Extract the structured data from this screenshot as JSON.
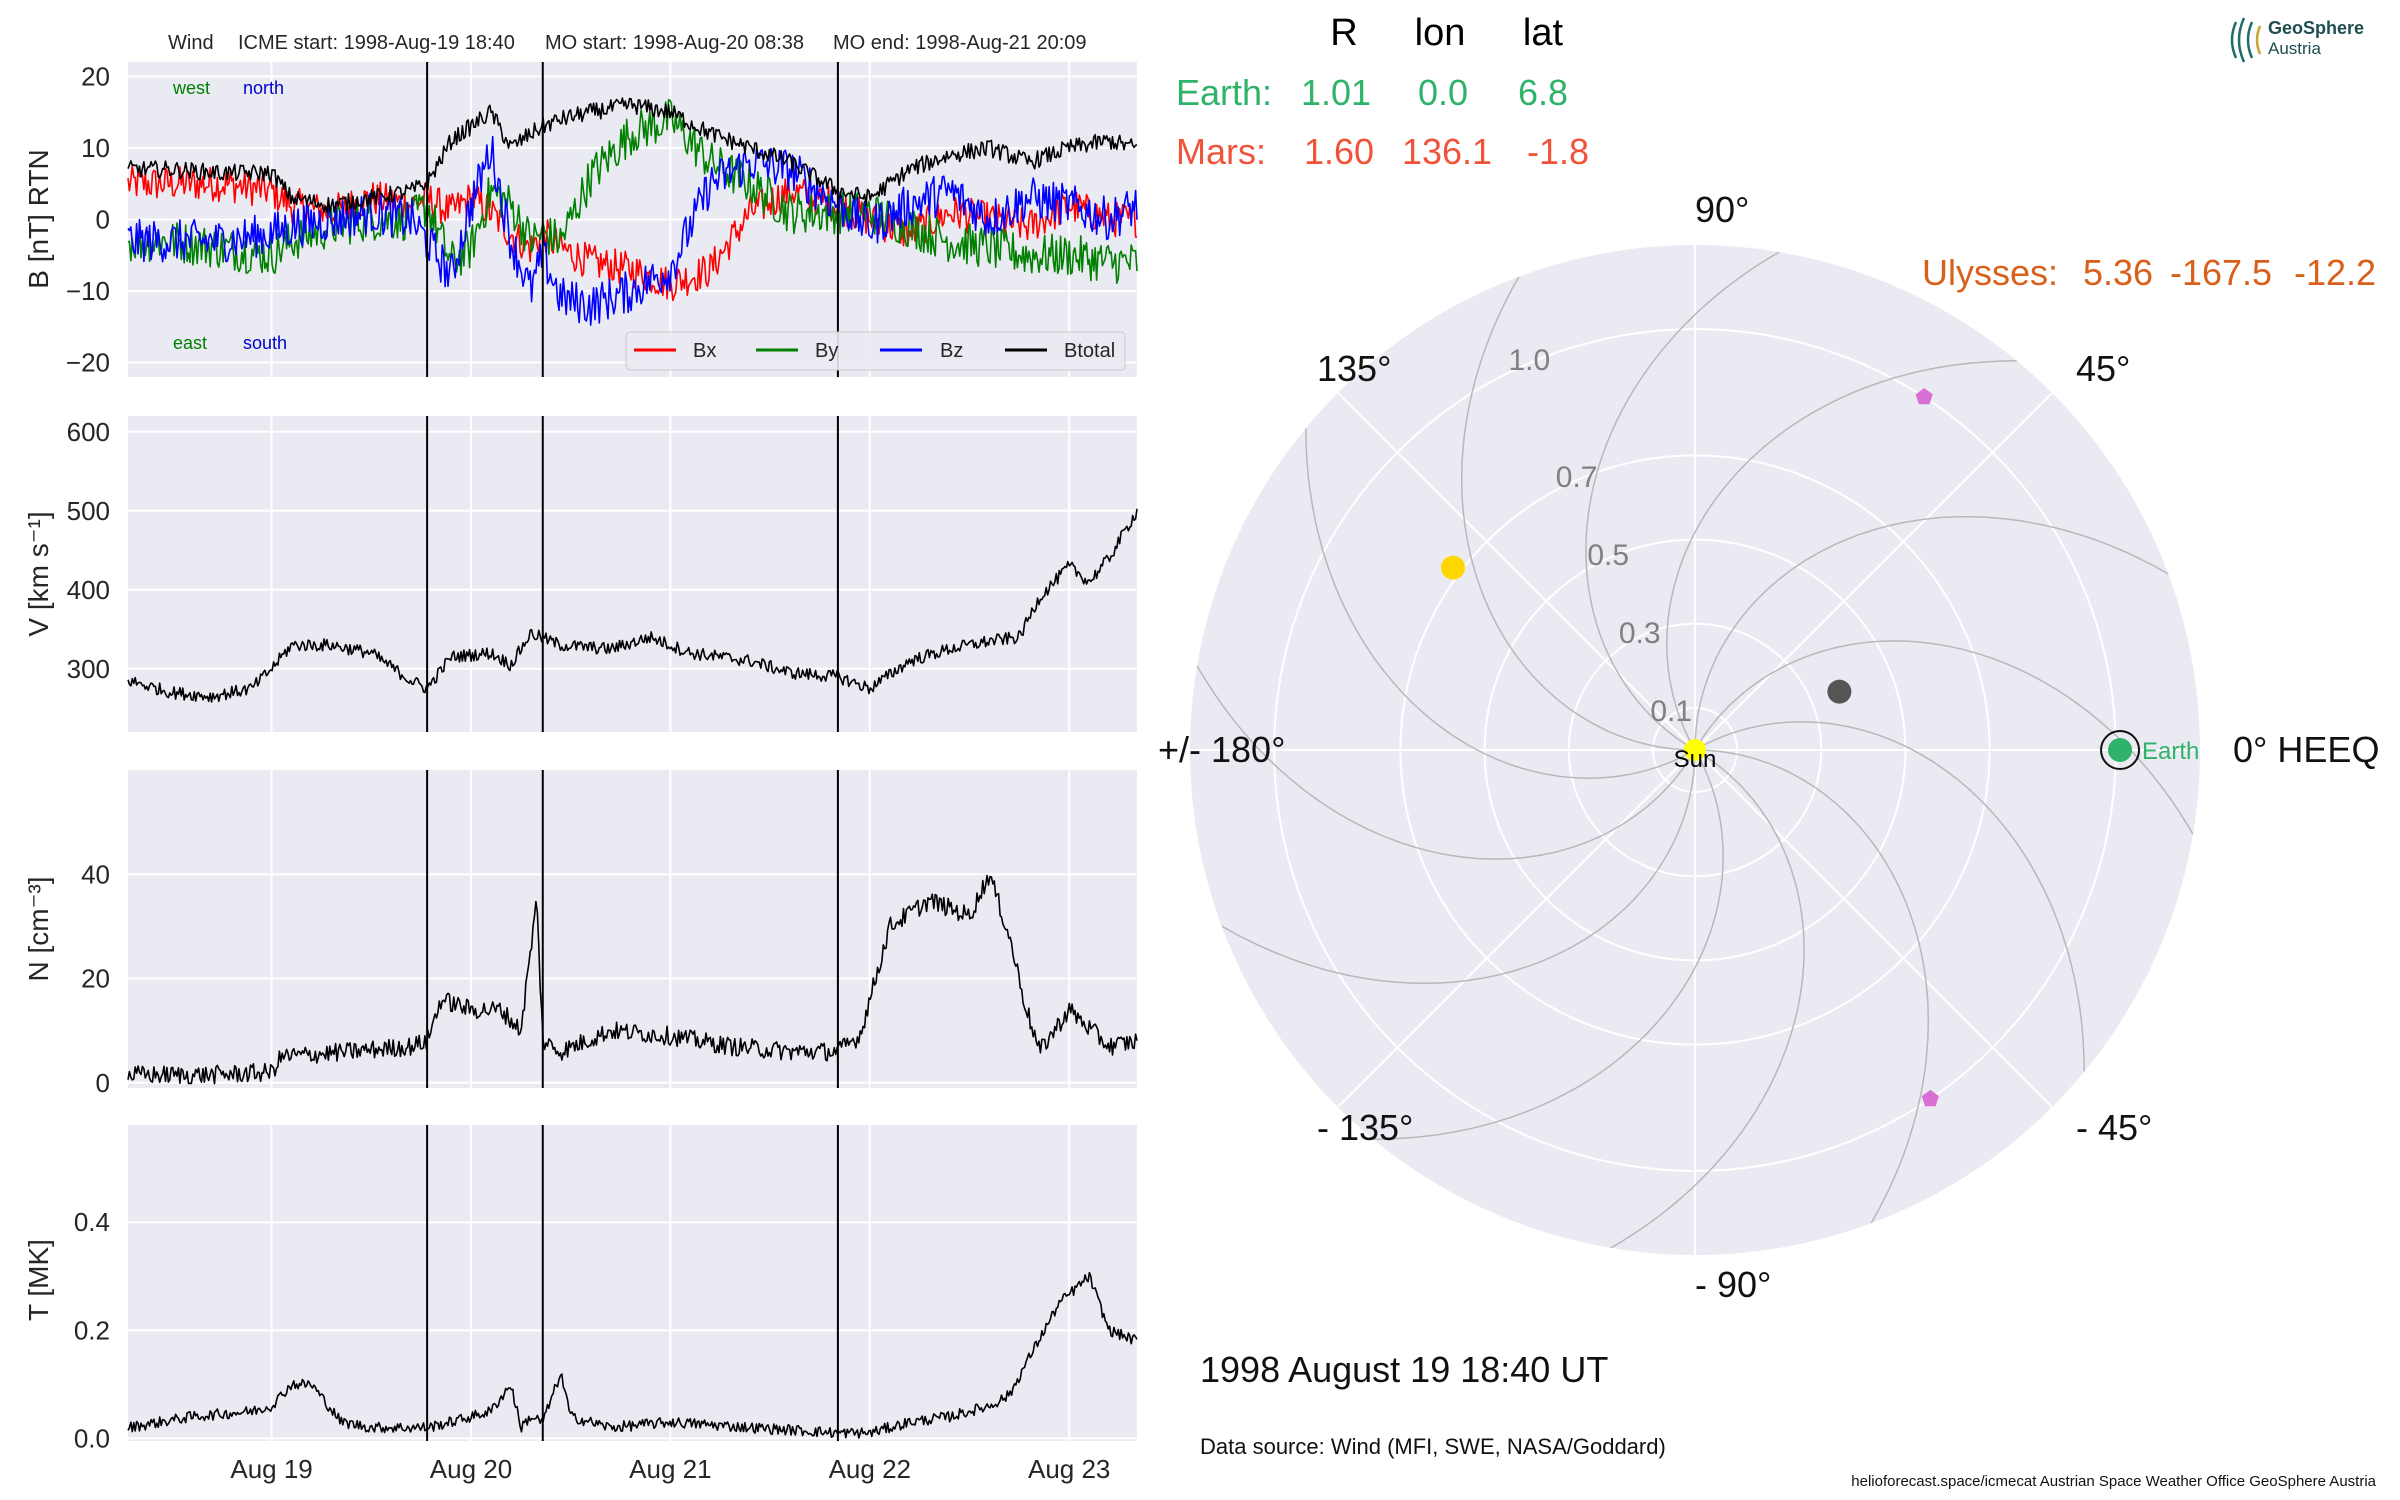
{
  "header": {
    "title_spacecraft": "Wind",
    "title_icme": "ICME start: 1998-Aug-19 18:40",
    "title_mo_start": "MO start: 1998-Aug-20 08:38",
    "title_mo_end": "MO end: 1998-Aug-21 20:09"
  },
  "position_table": {
    "columns": [
      "R",
      "lon",
      "lat"
    ],
    "rows": [
      {
        "name": "Earth:",
        "r": "1.01",
        "lon": "0.0",
        "lat": "6.8",
        "color": "#2fb26a"
      },
      {
        "name": "Mars:",
        "r": "1.60",
        "lon": "136.1",
        "lat": "-1.8",
        "color": "#f0533a"
      }
    ],
    "ulysses": {
      "name": "Ulysses:",
      "r": "5.36",
      "lon": "-167.5",
      "lat": "-12.2",
      "color": "#d8601a"
    }
  },
  "polar": {
    "angle_labels": {
      "a0": "0° HEEQ",
      "a45": "45°",
      "a90": "90°",
      "a135": "135°",
      "a180": "+/- 180°",
      "am135": "- 135°",
      "am90": "- 90°",
      "am45": "- 45°"
    },
    "radial_ticks": [
      "0.1",
      "0.3",
      "0.5",
      "0.7",
      "1.0"
    ],
    "radial_tick_values": [
      0.1,
      0.3,
      0.5,
      0.7,
      1.0
    ],
    "r_max": 1.2,
    "sun_label": "Sun",
    "earth_label": "Earth",
    "bodies": [
      {
        "name": "Sun",
        "r": 0.0,
        "lon": 0,
        "color": "#ffff00",
        "shape": "circle"
      },
      {
        "name": "Earth",
        "r": 1.01,
        "lon": 0.0,
        "color": "#2fb26a",
        "shape": "circle",
        "ring": true
      },
      {
        "name": "Mercury",
        "r": 0.37,
        "lon": 22,
        "color": "#555555",
        "shape": "circle"
      },
      {
        "name": "Venus",
        "r": 0.72,
        "lon": 143,
        "color": "#ffd700",
        "shape": "circle"
      },
      {
        "name": "Spacecraft A",
        "r": 1.0,
        "lon": 57,
        "color": "#d86fd2",
        "shape": "pentagon"
      },
      {
        "name": "Spacecraft B",
        "r": 1.0,
        "lon": -56,
        "color": "#d86fd2",
        "shape": "pentagon"
      }
    ]
  },
  "footer": {
    "date": "1998 August 19  18:40 UT",
    "source": "Data source: Wind (MFI, SWE, NASA/Goddard)",
    "credits": "helioforecast.space/icmecat   Austrian Space Weather Office   GeoSphere Austria"
  },
  "logo": {
    "line1": "GeoSphere",
    "line2": "Austria"
  },
  "timeseries": {
    "x_tick_labels": [
      "Aug 19",
      "Aug 20",
      "Aug 21",
      "Aug 22",
      "Aug 23"
    ],
    "x_tick_days": [
      19,
      20,
      21,
      22,
      23
    ],
    "x_range_days": [
      18.28,
      23.34
    ],
    "event_lines_days": [
      19.78,
      20.36,
      21.84
    ],
    "event_lines_labels": [
      "ICME start",
      "MO start",
      "MO end"
    ]
  },
  "chart_data": [
    {
      "type": "line",
      "panel": "magnetic_field",
      "ylabel": "B [nT] RTN",
      "ylim": [
        -22,
        22
      ],
      "yticks": [
        "20",
        "10",
        "0",
        "−10",
        "−20"
      ],
      "ytick_values": [
        20,
        10,
        0,
        -10,
        -20
      ],
      "annotations": {
        "west": "west",
        "north": "north",
        "east": "east",
        "south": "south"
      },
      "x_days": [
        18.28,
        18.5,
        18.75,
        19.0,
        19.1,
        19.3,
        19.5,
        19.7,
        19.78,
        19.9,
        20.0,
        20.1,
        20.2,
        20.3,
        20.36,
        20.45,
        20.6,
        20.8,
        21.0,
        21.2,
        21.4,
        21.6,
        21.84,
        22.0,
        22.2,
        22.4,
        22.6,
        22.8,
        23.0,
        23.2,
        23.34
      ],
      "series": [
        {
          "name": "Bx",
          "color": "#ff0000",
          "noise": 2.5,
          "values": [
            5,
            5,
            5,
            4,
            2,
            1,
            3,
            2,
            3,
            1,
            3,
            1,
            -2,
            -4,
            -2,
            -4,
            -6,
            -7,
            -9,
            -7,
            1,
            4,
            2,
            0,
            -2,
            1,
            0,
            -1,
            2,
            0,
            0
          ]
        },
        {
          "name": "By",
          "color": "#008000",
          "noise": 3.0,
          "values": [
            -3,
            -3,
            -4,
            -5,
            -3,
            -1,
            0,
            0,
            2,
            -6,
            -4,
            4,
            2,
            -3,
            -2,
            -3,
            6,
            12,
            14,
            8,
            5,
            1,
            1,
            1,
            -1,
            -3,
            -4,
            -5,
            -5,
            -6,
            -6
          ]
        },
        {
          "name": "Bz",
          "color": "#0000ff",
          "noise": 3.0,
          "values": [
            -3,
            -3,
            -3,
            -2,
            -1,
            0,
            1,
            0,
            -3,
            -8,
            2,
            10,
            -3,
            -10,
            -5,
            -11,
            -12,
            -10,
            -7,
            5,
            8,
            7,
            2,
            -1,
            2,
            4,
            0,
            3,
            2,
            0,
            2
          ]
        },
        {
          "name": "Btotal",
          "color": "#000000",
          "noise": 1.2,
          "values": [
            7,
            7,
            6.5,
            6.5,
            3,
            2,
            3,
            4,
            5,
            11,
            13,
            15,
            10,
            12,
            13,
            14,
            15,
            16,
            15,
            12,
            10,
            8,
            4,
            3,
            7,
            9,
            10,
            8,
            10,
            11,
            10
          ]
        }
      ]
    },
    {
      "type": "line",
      "panel": "velocity",
      "ylabel": "V [km s⁻¹]",
      "ylim": [
        220,
        620
      ],
      "yticks": [
        "600",
        "500",
        "400",
        "300"
      ],
      "ytick_values": [
        600,
        500,
        400,
        300
      ],
      "x_days": [
        18.28,
        18.5,
        18.7,
        18.9,
        19.0,
        19.1,
        19.3,
        19.5,
        19.7,
        19.78,
        19.9,
        20.1,
        20.2,
        20.3,
        20.45,
        20.7,
        20.9,
        21.1,
        21.4,
        21.6,
        21.84,
        22.0,
        22.2,
        22.4,
        22.6,
        22.75,
        22.85,
        23.0,
        23.1,
        23.2,
        23.34
      ],
      "series": [
        {
          "name": "V",
          "color": "#000000",
          "noise": 8,
          "values": [
            285,
            270,
            265,
            275,
            300,
            330,
            330,
            320,
            285,
            275,
            315,
            320,
            305,
            345,
            330,
            325,
            340,
            320,
            310,
            295,
            290,
            275,
            310,
            325,
            335,
            340,
            390,
            430,
            410,
            440,
            500
          ]
        }
      ]
    },
    {
      "type": "line",
      "panel": "density",
      "ylabel": "N [cm⁻³]",
      "ylim": [
        -1,
        60
      ],
      "yticks": [
        "40",
        "20",
        "0"
      ],
      "ytick_values": [
        40,
        20,
        0
      ],
      "x_days": [
        18.28,
        18.7,
        19.0,
        19.05,
        19.4,
        19.7,
        19.78,
        19.85,
        20.0,
        20.15,
        20.25,
        20.33,
        20.36,
        20.45,
        20.7,
        21.0,
        21.3,
        21.6,
        21.84,
        21.95,
        22.1,
        22.3,
        22.5,
        22.6,
        22.7,
        22.78,
        22.85,
        23.0,
        23.2,
        23.34
      ],
      "series": [
        {
          "name": "N",
          "color": "#000000",
          "noise": 1.8,
          "values": [
            1.5,
            1.5,
            2,
            5,
            6,
            7,
            8,
            16,
            14,
            14,
            10,
            35,
            8,
            6,
            10,
            9,
            7,
            6,
            6,
            9,
            30,
            35,
            32,
            40,
            28,
            15,
            6,
            14,
            7,
            8
          ]
        }
      ]
    },
    {
      "type": "line",
      "panel": "temperature",
      "ylabel": "T [MK]",
      "ylim": [
        -0.005,
        0.58
      ],
      "yticks": [
        "0.4",
        "0.2",
        "0.0"
      ],
      "ytick_values": [
        0.4,
        0.2,
        0.0
      ],
      "x_days": [
        18.28,
        18.6,
        18.9,
        19.0,
        19.1,
        19.2,
        19.35,
        19.5,
        19.78,
        19.9,
        20.1,
        20.2,
        20.25,
        20.3,
        20.36,
        20.45,
        20.5,
        20.7,
        21.0,
        21.4,
        21.84,
        22.0,
        22.2,
        22.4,
        22.6,
        22.7,
        22.8,
        22.95,
        23.1,
        23.2,
        23.34
      ],
      "series": [
        {
          "name": "T",
          "color": "#000000",
          "noise": 0.01,
          "values": [
            0.02,
            0.04,
            0.05,
            0.06,
            0.1,
            0.1,
            0.03,
            0.02,
            0.02,
            0.03,
            0.05,
            0.1,
            0.02,
            0.04,
            0.03,
            0.12,
            0.04,
            0.02,
            0.03,
            0.02,
            0.01,
            0.01,
            0.03,
            0.04,
            0.06,
            0.08,
            0.15,
            0.25,
            0.3,
            0.2,
            0.18
          ]
        }
      ]
    }
  ]
}
